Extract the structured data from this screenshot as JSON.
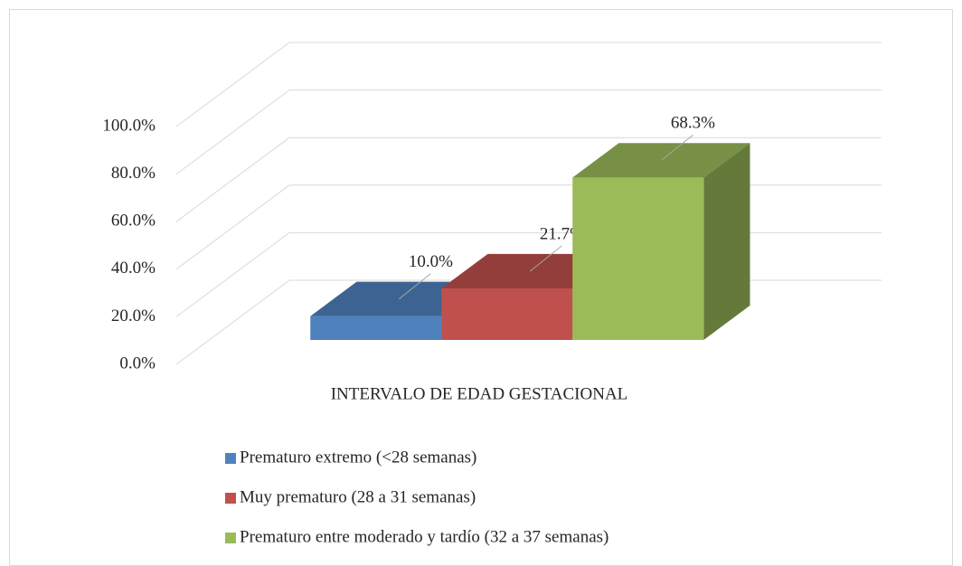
{
  "chart_data": {
    "type": "bar3d",
    "categories": [
      "INTERVALO DE EDAD GESTACIONAL"
    ],
    "series": [
      {
        "name": "Prematuro extremo (<28 semanas)",
        "color": "#4f81bd",
        "values": [
          10.0
        ],
        "value_labels": [
          "10.0%"
        ]
      },
      {
        "name": "Muy prematuro (28 a 31 semanas)",
        "color": "#c0504d",
        "values": [
          21.7
        ],
        "value_labels": [
          "21.7%"
        ]
      },
      {
        "name": "Prematuro entre moderado y tardío (32 a 37 semanas)",
        "color": "#9bbb59",
        "values": [
          68.3
        ],
        "value_labels": [
          "68.3%"
        ]
      }
    ],
    "ylim": [
      0,
      100
    ],
    "yticks": [
      {
        "value": 0,
        "label": "0.0%"
      },
      {
        "value": 20,
        "label": "20.0%"
      },
      {
        "value": 40,
        "label": "40.0%"
      },
      {
        "value": 60,
        "label": "60.0%"
      },
      {
        "value": 80,
        "label": "80.0%"
      },
      {
        "value": 100,
        "label": "100.0%"
      }
    ],
    "grid": true,
    "legend": "bottom"
  }
}
